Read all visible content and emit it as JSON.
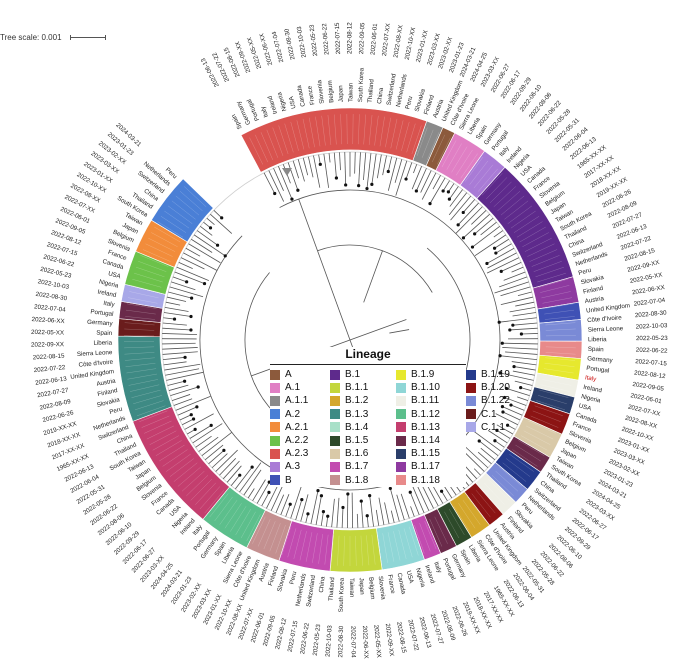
{
  "tree_scale": {
    "label": "Tree scale: 0.001"
  },
  "legend": {
    "title": "Lineage",
    "items": [
      {
        "label": "A",
        "color": "#8c5a3c"
      },
      {
        "label": "A.1",
        "color": "#e07fc4"
      },
      {
        "label": "A.1.1",
        "color": "#8a8a8a"
      },
      {
        "label": "A.2",
        "color": "#4a7fd6"
      },
      {
        "label": "A.2.1",
        "color": "#f28c3b"
      },
      {
        "label": "A.2.2",
        "color": "#6cc24a"
      },
      {
        "label": "A.2.3",
        "color": "#d9534f"
      },
      {
        "label": "A.3",
        "color": "#a97bd6"
      },
      {
        "label": "B",
        "color": "#3f51b5"
      },
      {
        "label": "B.1",
        "color": "#5e2a8c"
      },
      {
        "label": "B.1.1",
        "color": "#c3d63c"
      },
      {
        "label": "B.1.2",
        "color": "#d4a72c"
      },
      {
        "label": "B.1.3",
        "color": "#3e8a84"
      },
      {
        "label": "B.1.4",
        "color": "#a8e0c8"
      },
      {
        "label": "B.1.5",
        "color": "#2d4a2a"
      },
      {
        "label": "B.1.6",
        "color": "#d9c9a8"
      },
      {
        "label": "B.1.7",
        "color": "#c24bb0"
      },
      {
        "label": "B.1.8",
        "color": "#c49090"
      },
      {
        "label": "B.1.9",
        "color": "#e6e82e"
      },
      {
        "label": "B.1.10",
        "color": "#8fd6d6"
      },
      {
        "label": "B.1.11",
        "color": "#efefe6"
      },
      {
        "label": "B.1.12",
        "color": "#5cbf8c"
      },
      {
        "label": "B.1.13",
        "color": "#c43e6e"
      },
      {
        "label": "B.1.14",
        "color": "#6a2a4a"
      },
      {
        "label": "B.1.15",
        "color": "#2a3e6a"
      },
      {
        "label": "B.1.17",
        "color": "#8e3aa0"
      },
      {
        "label": "B.1.18",
        "color": "#e88a8a"
      },
      {
        "label": "B.1.19",
        "color": "#243a8c"
      },
      {
        "label": "B.1.20",
        "color": "#8c1414"
      },
      {
        "label": "B.1.22",
        "color": "#7a8ad6"
      },
      {
        "label": "C.1",
        "color": "#6a1c1c"
      },
      {
        "label": "C.1.1",
        "color": "#a8a8e8"
      }
    ]
  },
  "clade_sequence": [
    "A.2.3",
    "A.1.1",
    "A",
    "A.1",
    "A.3",
    "B.1",
    "B.1.17",
    "B",
    "B.1.22",
    "B.1.18",
    "B.1.9",
    "B.1.11",
    "B.1.15",
    "B.1.20",
    "B.1.6",
    "B.1.14",
    "B.1.19",
    "B.1.22",
    "B.1.11",
    "B.1.20",
    "B.1.2",
    "B.1.5",
    "B.1.14",
    "B.1.7",
    "B.1.10",
    "B.1.1",
    "B.1.7",
    "B.1.8",
    "B.1.12",
    "B.1.13",
    "B.1.3",
    "C.1",
    "B.1.14",
    "C.1.1",
    "A.2.2",
    "A.2.1",
    "A.2"
  ],
  "countries": [
    "Spain",
    "Germany",
    "Portugal",
    "Italy",
    "Ireland",
    "Nigeria",
    "USA",
    "Canada",
    "France",
    "Slovenia",
    "Belgium",
    "Japan",
    "Taiwan",
    "South Korea",
    "Thailand",
    "China",
    "Switzerland",
    "Netherlands",
    "Peru",
    "Slovakia",
    "Finland",
    "Austria",
    "United Kingdom",
    "Côte d'Ivoire",
    "Sierra Leone",
    "Liberia"
  ],
  "dates": [
    "2022-06-13",
    "2022-07-22",
    "2022-08-15",
    "2022-09-XX",
    "2022-05-XX",
    "2022-06-XX",
    "2022-07-04",
    "2022-08-30",
    "2022-10-03",
    "2022-05-23",
    "2022-06-22",
    "2022-07-15",
    "2022-08-12",
    "2022-09-05",
    "2022-06-01",
    "2022-07-XX",
    "2022-08-XX",
    "2022-10-XX",
    "2023-01-XX",
    "2023-03-XX",
    "2023-02-XX",
    "2023-01-23",
    "2024-03-21",
    "2024-04-25",
    "2023-03-XX",
    "2022-06-27",
    "2022-06-17",
    "2022-09-29",
    "2022-06-10",
    "2022-08-06",
    "2022-06-22",
    "2022-05-28",
    "2022-05-31",
    "2022-06-04",
    "2022-06-13",
    "1965-XX-XX",
    "2017-XX-XX",
    "2018-XX-XX",
    "2019-XX-XX",
    "2022-06-26",
    "2022-08-09",
    "2022-07-27"
  ],
  "highlight_color": "#cc1111"
}
